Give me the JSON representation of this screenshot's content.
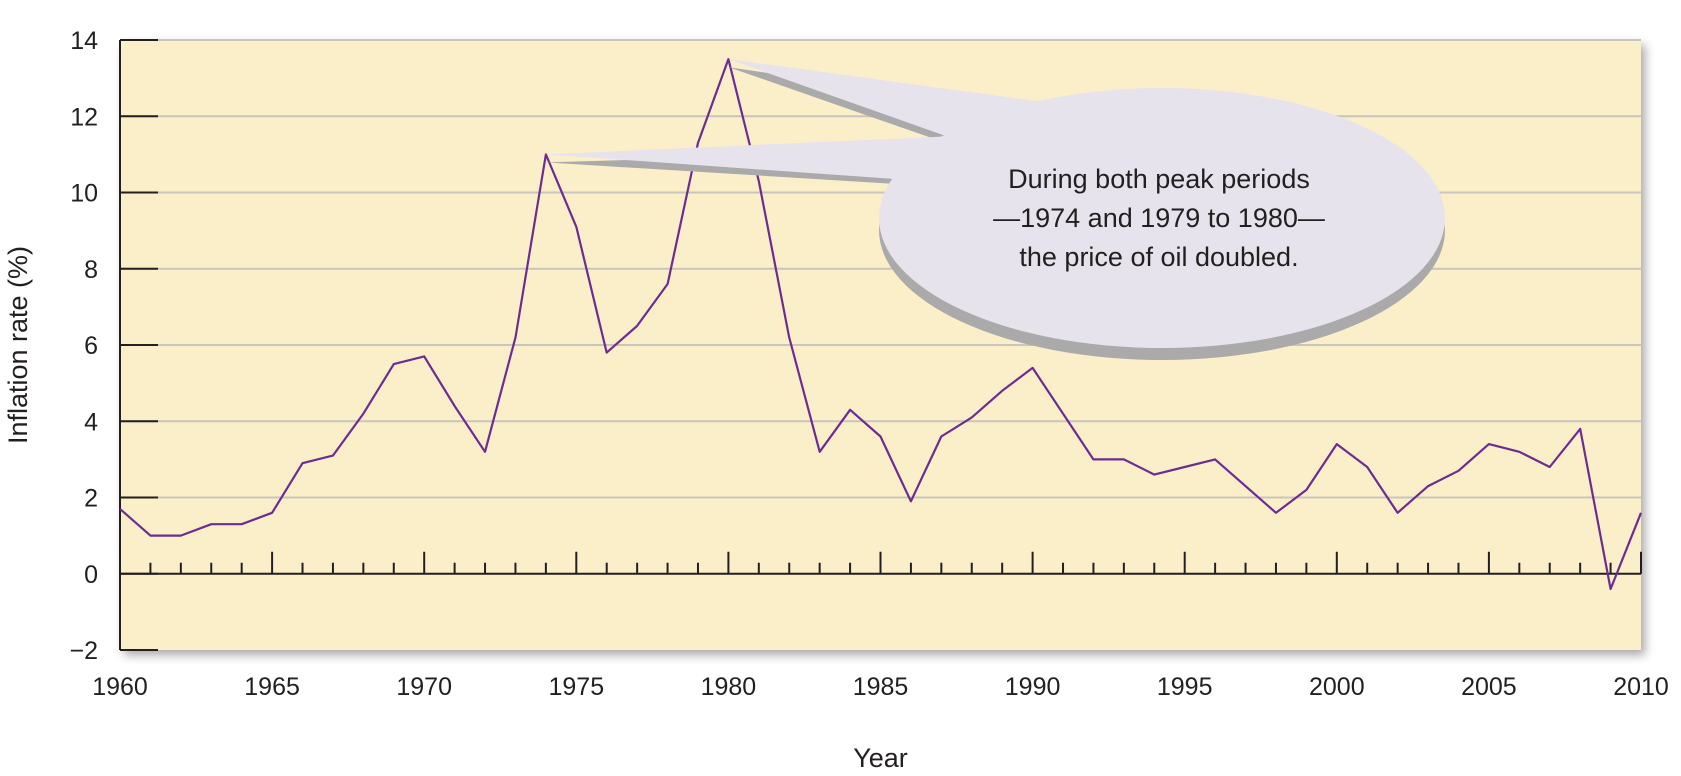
{
  "chart_data": {
    "type": "line",
    "xlabel": "Year",
    "ylabel": "Inflation rate (%)",
    "xlim": [
      1960,
      2010
    ],
    "ylim": [
      -2,
      14
    ],
    "x_ticks": [
      1960,
      1965,
      1970,
      1975,
      1980,
      1985,
      1990,
      1995,
      2000,
      2005,
      2010
    ],
    "y_ticks": [
      -2,
      0,
      2,
      4,
      6,
      8,
      10,
      12,
      14
    ],
    "x_tick_labels": [
      "1960",
      "1965",
      "1970",
      "1975",
      "1980",
      "1985",
      "1990",
      "1995",
      "2000",
      "2005",
      "2010"
    ],
    "y_tick_labels": [
      "−2",
      "0",
      "2",
      "4",
      "6",
      "8",
      "10",
      "12",
      "14"
    ],
    "grid": "horizontal",
    "colors": {
      "plot_background": "#fbefc9",
      "line": "#6b2d91",
      "gridline": "#c9c4bc",
      "axis": "#231f20",
      "callout_fill": "#e6e3ec",
      "callout_shadow": "#aaaaaa"
    },
    "series": [
      {
        "x": [
          1960,
          1961,
          1962,
          1963,
          1964,
          1965,
          1966,
          1967,
          1968,
          1969,
          1970,
          1971,
          1972,
          1973,
          1974,
          1975,
          1976,
          1977,
          1978,
          1979,
          1980,
          1981,
          1982,
          1983,
          1984,
          1985,
          1986,
          1987,
          1988,
          1989,
          1990,
          1991,
          1992,
          1993,
          1994,
          1995,
          1996,
          1997,
          1998,
          1999,
          2000,
          2001,
          2002,
          2003,
          2004,
          2005,
          2006,
          2007,
          2008,
          2009,
          2010
        ],
        "y": [
          1.7,
          1.0,
          1.0,
          1.3,
          1.3,
          1.6,
          2.9,
          3.1,
          4.2,
          5.5,
          5.7,
          4.4,
          3.2,
          6.2,
          11.0,
          9.1,
          5.8,
          6.5,
          7.6,
          11.3,
          13.5,
          10.3,
          6.2,
          3.2,
          4.3,
          3.6,
          1.9,
          3.6,
          4.1,
          4.8,
          5.4,
          4.2,
          3.0,
          3.0,
          2.6,
          2.8,
          3.0,
          2.3,
          1.6,
          2.2,
          3.4,
          2.8,
          1.6,
          2.3,
          2.7,
          3.4,
          3.2,
          2.8,
          3.8,
          -0.4,
          1.6
        ]
      }
    ],
    "annotation": {
      "lines": [
        "During both peak periods",
        "—1974 and 1979 to 1980—",
        "the price of oil doubled."
      ],
      "points_to": [
        1974,
        1980
      ]
    }
  }
}
